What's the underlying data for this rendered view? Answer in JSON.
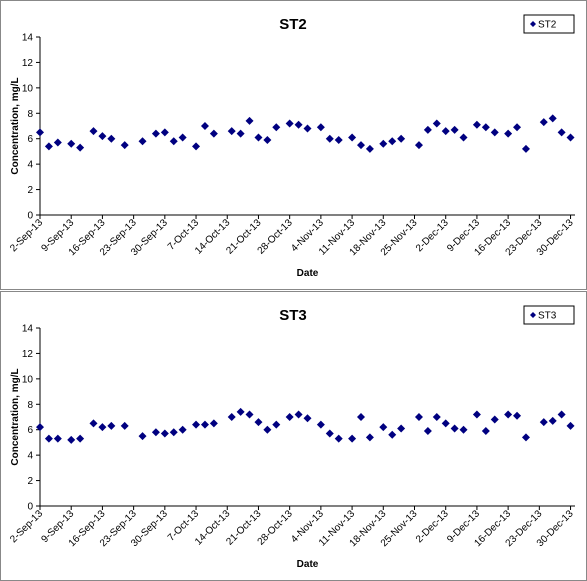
{
  "chart_data": [
    {
      "type": "scatter",
      "title": "ST2",
      "x_label": "Date",
      "y_label": "Concentration, mg/L",
      "legend": "upper right",
      "xlim": [
        "2-Sep-13",
        "31-Dec-13"
      ],
      "xticks": [
        "2-Sep-13",
        "9-Sep-13",
        "16-Sep-13",
        "23-Sep-13",
        "30-Sep-13",
        "7-Oct-13",
        "14-Oct-13",
        "21-Oct-13",
        "28-Oct-13",
        "4-Nov-13",
        "11-Nov-13",
        "18-Nov-13",
        "25-Nov-13",
        "2-Dec-13",
        "9-Dec-13",
        "16-Dec-13",
        "23-Dec-13",
        "30-Dec-13"
      ],
      "ylim": [
        0,
        14
      ],
      "yticks": [
        0,
        2,
        4,
        6,
        8,
        10,
        12,
        14
      ],
      "series": [
        {
          "name": "ST2",
          "color": "#000080",
          "x": [
            "2-Sep-13",
            "4-Sep-13",
            "6-Sep-13",
            "9-Sep-13",
            "11-Sep-13",
            "14-Sep-13",
            "16-Sep-13",
            "18-Sep-13",
            "21-Sep-13",
            "25-Sep-13",
            "28-Sep-13",
            "30-Sep-13",
            "2-Oct-13",
            "4-Oct-13",
            "7-Oct-13",
            "9-Oct-13",
            "11-Oct-13",
            "15-Oct-13",
            "17-Oct-13",
            "19-Oct-13",
            "21-Oct-13",
            "23-Oct-13",
            "25-Oct-13",
            "28-Oct-13",
            "30-Oct-13",
            "1-Nov-13",
            "4-Nov-13",
            "6-Nov-13",
            "8-Nov-13",
            "11-Nov-13",
            "13-Nov-13",
            "15-Nov-13",
            "18-Nov-13",
            "20-Nov-13",
            "22-Nov-13",
            "26-Nov-13",
            "28-Nov-13",
            "30-Nov-13",
            "2-Dec-13",
            "4-Dec-13",
            "6-Dec-13",
            "9-Dec-13",
            "11-Dec-13",
            "13-Dec-13",
            "16-Dec-13",
            "18-Dec-13",
            "20-Dec-13",
            "24-Dec-13",
            "26-Dec-13",
            "28-Dec-13",
            "30-Dec-13"
          ],
          "values": [
            6.5,
            5.4,
            5.7,
            5.6,
            5.3,
            6.6,
            6.2,
            6.0,
            5.5,
            5.8,
            6.4,
            6.5,
            5.8,
            6.1,
            5.4,
            7.0,
            6.4,
            6.6,
            6.4,
            7.4,
            6.1,
            5.9,
            6.9,
            7.2,
            7.1,
            6.8,
            6.9,
            6.0,
            5.9,
            6.1,
            5.5,
            5.2,
            5.6,
            5.8,
            6.0,
            5.5,
            6.7,
            7.2,
            6.6,
            6.7,
            6.1,
            7.1,
            6.9,
            6.5,
            6.4,
            6.9,
            5.2,
            7.3,
            7.6,
            6.5,
            6.1
          ]
        }
      ]
    },
    {
      "type": "scatter",
      "title": "ST3",
      "x_label": "Date",
      "y_label": "Concentration, mg/L",
      "legend": "upper right",
      "xlim": [
        "2-Sep-13",
        "31-Dec-13"
      ],
      "xticks": [
        "2-Sep-13",
        "9-Sep-13",
        "16-Sep-13",
        "23-Sep-13",
        "30-Sep-13",
        "7-Oct-13",
        "14-Oct-13",
        "21-Oct-13",
        "28-Oct-13",
        "4-Nov-13",
        "11-Nov-13",
        "18-Nov-13",
        "25-Nov-13",
        "2-Dec-13",
        "9-Dec-13",
        "16-Dec-13",
        "23-Dec-13",
        "30-Dec-13"
      ],
      "ylim": [
        0,
        14
      ],
      "yticks": [
        0,
        2,
        4,
        6,
        8,
        10,
        12,
        14
      ],
      "series": [
        {
          "name": "ST3",
          "color": "#000080",
          "x": [
            "2-Sep-13",
            "4-Sep-13",
            "6-Sep-13",
            "9-Sep-13",
            "11-Sep-13",
            "14-Sep-13",
            "16-Sep-13",
            "18-Sep-13",
            "21-Sep-13",
            "25-Sep-13",
            "28-Sep-13",
            "30-Sep-13",
            "2-Oct-13",
            "4-Oct-13",
            "7-Oct-13",
            "9-Oct-13",
            "11-Oct-13",
            "15-Oct-13",
            "17-Oct-13",
            "19-Oct-13",
            "21-Oct-13",
            "23-Oct-13",
            "25-Oct-13",
            "28-Oct-13",
            "30-Oct-13",
            "1-Nov-13",
            "4-Nov-13",
            "6-Nov-13",
            "8-Nov-13",
            "11-Nov-13",
            "13-Nov-13",
            "15-Nov-13",
            "18-Nov-13",
            "20-Nov-13",
            "22-Nov-13",
            "26-Nov-13",
            "28-Nov-13",
            "30-Nov-13",
            "2-Dec-13",
            "4-Dec-13",
            "6-Dec-13",
            "9-Dec-13",
            "11-Dec-13",
            "13-Dec-13",
            "16-Dec-13",
            "18-Dec-13",
            "20-Dec-13",
            "24-Dec-13",
            "26-Dec-13",
            "28-Dec-13",
            "30-Dec-13"
          ],
          "values": [
            6.2,
            5.3,
            5.3,
            5.2,
            5.3,
            6.5,
            6.2,
            6.3,
            6.3,
            5.5,
            5.8,
            5.7,
            5.8,
            6.0,
            6.4,
            6.4,
            6.5,
            7.0,
            7.4,
            7.2,
            6.6,
            6.0,
            6.4,
            7.0,
            7.2,
            6.9,
            6.4,
            5.7,
            5.3,
            5.3,
            7.0,
            5.4,
            6.2,
            5.6,
            6.1,
            7.0,
            5.9,
            7.0,
            6.5,
            6.1,
            6.0,
            7.2,
            5.9,
            6.8,
            7.2,
            7.1,
            5.4,
            6.6,
            6.7,
            7.2,
            6.3
          ]
        }
      ]
    }
  ]
}
